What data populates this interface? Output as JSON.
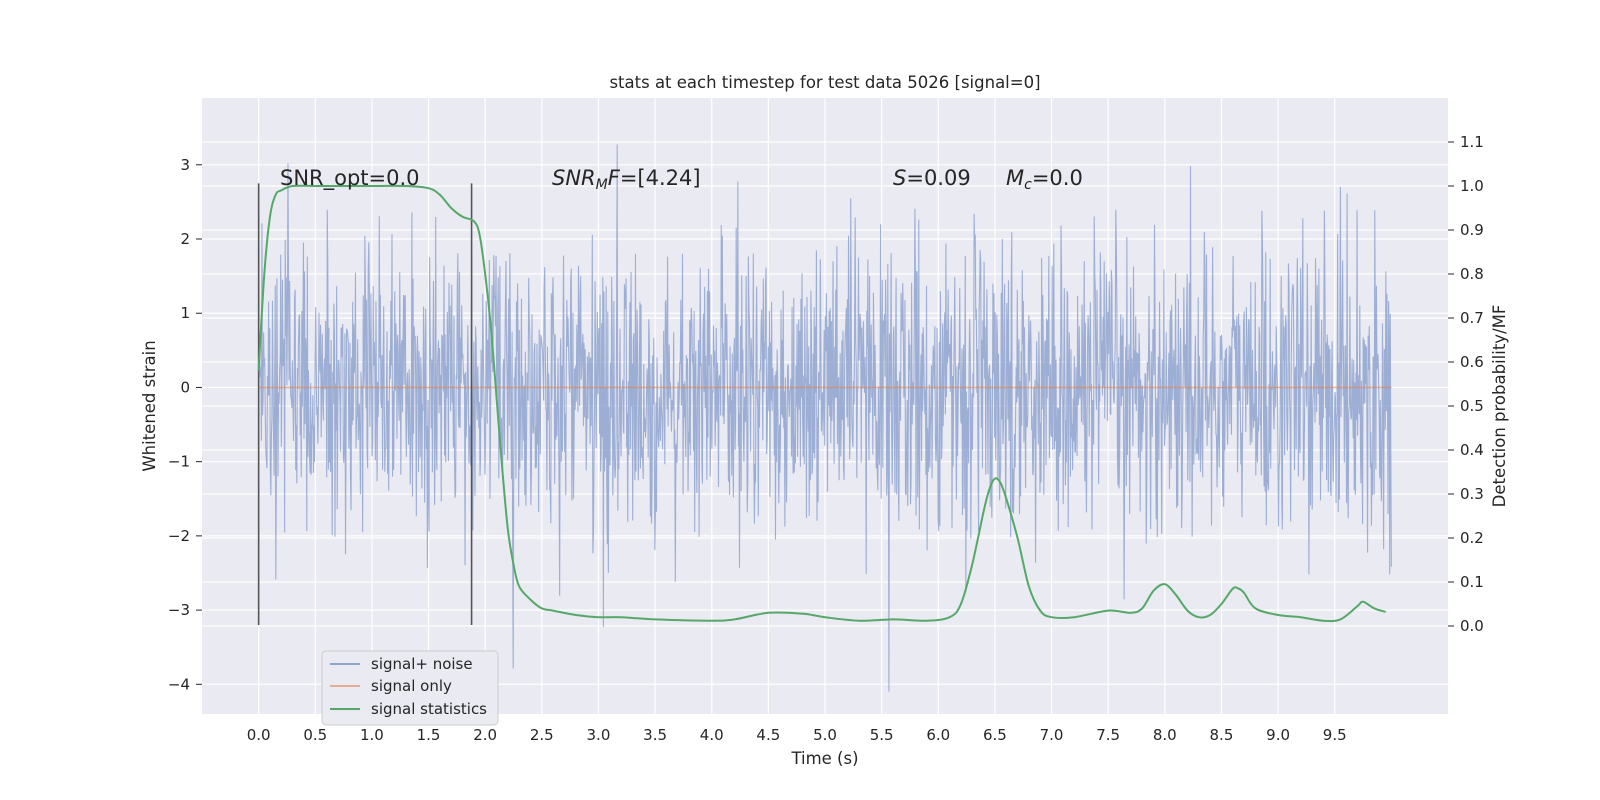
{
  "chart_data": {
    "type": "line",
    "title": "stats at each timestep for test data 5026 [signal=0]",
    "xlabel": "Time (s)",
    "ylabel": "Whitened strain",
    "ylabel_right": "Detection probability/MF",
    "xlim": [
      -0.5,
      10.5
    ],
    "ylim": [
      -4.4,
      3.9
    ],
    "ylim_right": [
      -0.2,
      1.2
    ],
    "x_ticks": [
      "0.0",
      "0.5",
      "1.0",
      "1.5",
      "2.0",
      "2.5",
      "3.0",
      "3.5",
      "4.0",
      "4.5",
      "5.0",
      "5.5",
      "6.0",
      "6.5",
      "7.0",
      "7.5",
      "8.0",
      "8.5",
      "9.0",
      "9.5"
    ],
    "y_ticks": [
      "3",
      "2",
      "1",
      "0",
      "−1",
      "−2",
      "−3",
      "−4"
    ],
    "y_ticks_right": [
      "1.1",
      "1.0",
      "0.9",
      "0.8",
      "0.7",
      "0.6",
      "0.5",
      "0.4",
      "0.3",
      "0.2",
      "0.1",
      "0.0"
    ],
    "grid": true,
    "legend_position": "lower-left",
    "annotations": {
      "snr_opt": "SNR_opt=0.0",
      "snr_mf_main": "SNR",
      "snr_mf_sub": "M",
      "snr_mf_italic": "F",
      "snr_mf_value": "=[4.24]",
      "s_letter": "S",
      "s_value": "=0.09",
      "mc_letter": "M",
      "mc_sub": "c",
      "mc_value": "=0.0"
    },
    "vertical_markers": [
      {
        "x": 0.0,
        "ymin": -3.2,
        "ymax": 2.75
      },
      {
        "x": 1.88,
        "ymin": -3.2,
        "ymax": 2.75
      }
    ],
    "series": [
      {
        "name": "signal+ noise",
        "color": "#8fa3cf",
        "x_range": [
          0.0,
          10.0
        ],
        "std": 0.95,
        "note_points": 2048
      },
      {
        "name": "signal only",
        "color": "#dd8452",
        "x": [
          0.0,
          10.0
        ],
        "y": [
          0.0,
          0.0
        ]
      },
      {
        "name": "signal statistics",
        "color": "#55a868",
        "axis": "right",
        "x": [
          0.0,
          0.05,
          0.1,
          0.15,
          0.2,
          0.3,
          0.5,
          1.0,
          1.3,
          1.5,
          1.6,
          1.7,
          1.8,
          1.9,
          1.95,
          2.0,
          2.05,
          2.1,
          2.15,
          2.2,
          2.25,
          2.3,
          2.4,
          2.5,
          2.6,
          2.8,
          3.0,
          3.2,
          3.5,
          4.0,
          4.2,
          4.5,
          4.8,
          5.0,
          5.3,
          5.6,
          5.9,
          6.1,
          6.2,
          6.3,
          6.4,
          6.45,
          6.5,
          6.55,
          6.6,
          6.7,
          6.8,
          6.9,
          7.0,
          7.2,
          7.5,
          7.7,
          7.8,
          7.9,
          8.0,
          8.1,
          8.2,
          8.3,
          8.4,
          8.5,
          8.6,
          8.65,
          8.7,
          8.8,
          9.0,
          9.2,
          9.4,
          9.55,
          9.7,
          9.75,
          9.85,
          9.95
        ],
        "y": [
          0.58,
          0.8,
          0.93,
          0.98,
          0.99,
          1.0,
          1.0,
          1.0,
          1.0,
          0.995,
          0.98,
          0.95,
          0.93,
          0.92,
          0.89,
          0.8,
          0.68,
          0.52,
          0.36,
          0.22,
          0.14,
          0.09,
          0.06,
          0.04,
          0.035,
          0.025,
          0.02,
          0.02,
          0.015,
          0.012,
          0.015,
          0.03,
          0.028,
          0.02,
          0.012,
          0.015,
          0.012,
          0.02,
          0.05,
          0.14,
          0.26,
          0.31,
          0.335,
          0.325,
          0.29,
          0.2,
          0.09,
          0.035,
          0.02,
          0.02,
          0.035,
          0.03,
          0.04,
          0.08,
          0.095,
          0.07,
          0.035,
          0.02,
          0.025,
          0.05,
          0.085,
          0.085,
          0.075,
          0.04,
          0.025,
          0.02,
          0.012,
          0.015,
          0.045,
          0.055,
          0.04,
          0.032
        ]
      }
    ]
  }
}
